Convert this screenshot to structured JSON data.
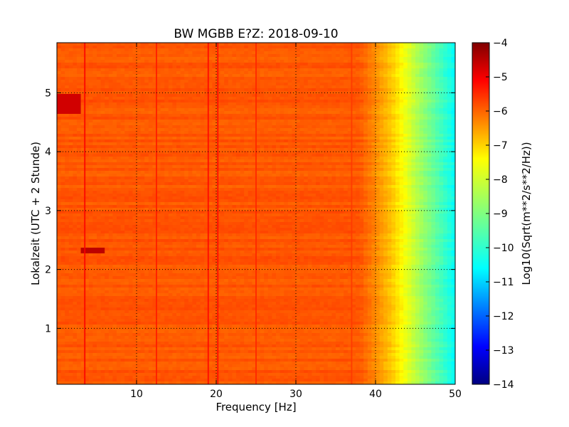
{
  "chart_data": {
    "type": "heatmap",
    "title": "BW MGBB E?Z: 2018-09-10",
    "xlabel": "Frequency [Hz]",
    "ylabel": "Lokalzeit (UTC + 2 Stunde)",
    "xlim": [
      0,
      50
    ],
    "ylim": [
      5.85,
      0.05
    ],
    "x_ticks": [
      10,
      20,
      30,
      40,
      50
    ],
    "y_ticks": [
      1,
      2,
      3,
      4,
      5
    ],
    "grid": true,
    "colorbar": {
      "label": "Log10(Sqrt(m**2/s**2/Hz))",
      "range": [
        -14,
        -4
      ],
      "ticks": [
        -4,
        -5,
        -6,
        -7,
        -8,
        -9,
        -10,
        -11,
        -12,
        -13,
        -14
      ],
      "colormap": "jet"
    },
    "base_level": -6.1,
    "rolloff_points": [
      [
        0,
        -6.1
      ],
      [
        38,
        -6.1
      ],
      [
        40,
        -6.6
      ],
      [
        42,
        -7.2
      ],
      [
        44,
        -8.0
      ],
      [
        46,
        -8.8
      ],
      [
        48,
        -9.5
      ],
      [
        50,
        -10.2
      ]
    ],
    "vertical_lines": [
      {
        "frequency": 3.5,
        "level": -5.2
      },
      {
        "frequency": 12.5,
        "level": -5.5
      },
      {
        "frequency": 19,
        "level": -5.3
      },
      {
        "frequency": 20.2,
        "level": -5.3
      },
      {
        "frequency": 25,
        "level": -5.6
      },
      {
        "frequency": 37,
        "level": -5.8
      }
    ],
    "hot_spots": [
      {
        "frequency": [
          0,
          3
        ],
        "time": [
          4.62,
          5.0
        ],
        "level": -4.8
      },
      {
        "frequency": [
          3,
          6
        ],
        "time": [
          2.25,
          2.35
        ],
        "level": -4.6
      }
    ]
  }
}
